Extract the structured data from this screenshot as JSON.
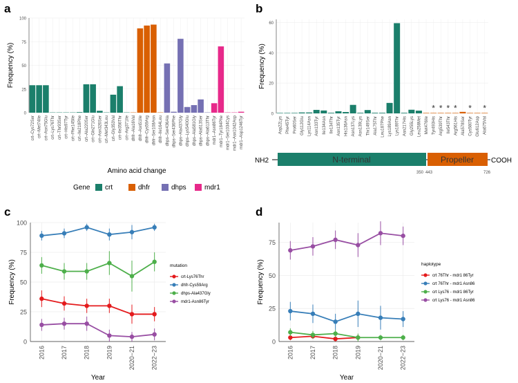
{
  "panels": {
    "a": "a",
    "b": "b",
    "c": "c",
    "d": "d"
  },
  "chart_data": [
    {
      "panel": "a",
      "type": "bar",
      "xlabel": "Amino acid change",
      "ylabel": "Frequency (%)",
      "ylim": [
        0,
        100
      ],
      "yticks": [
        0,
        25,
        50,
        75,
        100
      ],
      "grid": true,
      "legend_title": "Gene",
      "legend_position": "bottom",
      "gene_colors": {
        "crt": "#1b7f6b",
        "dhfr": "#d95f02",
        "dhps": "#7570b3",
        "mdr1": "#e7298a"
      },
      "categories": [
        "crt–Cys72Ser",
        "crt–Met74Ile",
        "crt–Asn75Glu",
        "crt–Lys76Thr",
        "crt–Thr93Ser",
        "crt–His97Tyr",
        "crt–Phe145Ile",
        "crt–Ile218Phe",
        "crt–Ala220Ser",
        "crt–Gln271Glu",
        "crt–Asn326Ser",
        "crt–Met343Leu",
        "crt–Gly353Val",
        "crt–Ile356Thr",
        "crt–Arg371Ile",
        "dhfr–Ala16Val",
        "dhfr–Asn51Ile",
        "dhfr–Cys59Arg",
        "dhfr–Ser108Asn",
        "dhfr–Ile164Leu",
        "dhps–Ser436Ala",
        "dhps–Ser436Phe",
        "dhps–Ala437Gly",
        "dhps–Lys540Glu",
        "dhps–Ala581Gly",
        "dhps–Ala613Ser",
        "dhps–Ala613Thr",
        "mdr1–Asn86Tyr",
        "mdr1–Tyr184Phe",
        "mdr1–Ser1034Cys",
        "mdr1–Asn1042Asp",
        "mdr1–Asp1246Tyr"
      ],
      "genes": [
        "crt",
        "crt",
        "crt",
        "crt",
        "crt",
        "crt",
        "crt",
        "crt",
        "crt",
        "crt",
        "crt",
        "crt",
        "crt",
        "crt",
        "crt",
        "dhfr",
        "dhfr",
        "dhfr",
        "dhfr",
        "dhfr",
        "dhps",
        "dhps",
        "dhps",
        "dhps",
        "dhps",
        "dhps",
        "dhps",
        "mdr1",
        "mdr1",
        "mdr1",
        "mdr1",
        "mdr1"
      ],
      "values": [
        29,
        29,
        29,
        0.3,
        0.3,
        0.3,
        0.3,
        0.6,
        30,
        30,
        2,
        0.3,
        19,
        28,
        0.3,
        0.3,
        89,
        92,
        93,
        0.3,
        52,
        1,
        78,
        6,
        8,
        14,
        0.3,
        10,
        70,
        0.3,
        0.3,
        1
      ]
    },
    {
      "panel": "b",
      "type": "bar",
      "ylabel": "Frequency (%)",
      "ylim": [
        0,
        62
      ],
      "yticks": [
        0,
        20,
        40,
        60
      ],
      "grid": true,
      "categories": [
        "Asp22Lys",
        "Phe45Tyr",
        "Pro60Ser",
        "Gly112Glu",
        "Lys114Asn",
        "Asn133Tyr",
        "Ile134Asn",
        "Ile134Thr",
        "Asn135Tyr",
        "His136Asn",
        "Asn137Lys",
        "Asn139Lys",
        "Thr149Ser",
        "Ala175Thr",
        "Leu187Phe",
        "Lys189Asn",
        "Lys189Thr",
        "Asn217His",
        "Gly255Lys",
        "Leu258Met",
        "Met476Ile",
        "Tyr493His",
        "Arg539Thr",
        "Ile543Thr",
        "Arg561His",
        "Ala578Ser",
        "Cys580Tyr",
        "Glu612Asp",
        "Ala675Val"
      ],
      "values": [
        0.3,
        0.3,
        0.3,
        0.6,
        0.6,
        2.3,
        1.9,
        0.4,
        1.4,
        0.9,
        5.6,
        0.4,
        2.2,
        0.4,
        0.4,
        6.9,
        59.5,
        0.4,
        2.4,
        1.8,
        0.3,
        0.3,
        0.3,
        0.3,
        0.3,
        1.0,
        0.3,
        0.3,
        0.3
      ],
      "colors": {
        "N-terminal": "#1b7f6b",
        "Propeller": "#d95f02"
      },
      "propeller_from_index": 20,
      "starred": [
        "Tyr493His",
        "Arg539Thr",
        "Ile543Thr",
        "Arg561His",
        "Cys580Tyr",
        "Ala675Val"
      ],
      "protein": {
        "nh2": "NH2",
        "cooh": "COOH",
        "domains": [
          {
            "name": "N-terminal",
            "start_label": "",
            "end_label": "350"
          },
          {
            "name": "Propeller",
            "start_label": "443",
            "end_label": "726"
          }
        ]
      }
    },
    {
      "panel": "c",
      "type": "line",
      "xlabel": "Year",
      "ylabel": "Frequency (%)",
      "categories": [
        "2016",
        "2017",
        "2018",
        "2019",
        "2020−21",
        "2022−23"
      ],
      "ylim": [
        0,
        100
      ],
      "yticks": [
        0,
        25,
        50,
        75,
        100
      ],
      "grid": true,
      "legend_title": "mutation",
      "legend_position": "right",
      "series": [
        {
          "name": "crt-Lys76Thr",
          "color": "#e41a1c",
          "values": [
            36,
            32,
            30,
            30,
            23,
            23
          ],
          "err": [
            7,
            6,
            6,
            6,
            8,
            6
          ]
        },
        {
          "name": "dhfr-Cys59Arg",
          "color": "#377eb8",
          "values": [
            89,
            91,
            96,
            90,
            92,
            96
          ],
          "err": [
            4,
            4,
            3,
            5,
            6,
            3
          ]
        },
        {
          "name": "dhps-Ala437Gly",
          "color": "#4daf4a",
          "values": [
            64,
            59,
            59,
            66,
            55,
            67
          ],
          "err": [
            7,
            7,
            7,
            10,
            13,
            8
          ]
        },
        {
          "name": "mdr1-Asn86Tyr",
          "color": "#984ea3",
          "values": [
            14,
            15,
            15,
            5,
            4,
            6
          ],
          "err": [
            5,
            5,
            6,
            5,
            4,
            5
          ]
        }
      ]
    },
    {
      "panel": "d",
      "type": "line",
      "xlabel": "Year",
      "ylabel": "Frequency (%)",
      "categories": [
        "2016",
        "2017",
        "2018",
        "2019",
        "2020−21",
        "2022−23"
      ],
      "ylim": [
        0,
        90
      ],
      "yticks": [
        0,
        25,
        50,
        75
      ],
      "grid": true,
      "legend_title": "haplotype",
      "legend_position": "right",
      "series": [
        {
          "name": "crt 76Thr - mdr1 86Tyr",
          "color": "#e41a1c",
          "values": [
            3,
            4,
            2,
            3,
            null,
            null
          ],
          "err": [
            2,
            2,
            2,
            2,
            0,
            0
          ]
        },
        {
          "name": "crt 76Thr - mdr1 Asn86",
          "color": "#377eb8",
          "values": [
            23,
            21,
            15,
            21,
            18,
            17
          ],
          "err": [
            7,
            7,
            6,
            10,
            9,
            6
          ]
        },
        {
          "name": "crt Lys76 - mdr1 86Tyr",
          "color": "#4daf4a",
          "values": [
            7,
            5,
            6,
            3,
            3,
            3
          ],
          "err": [
            3,
            3,
            3,
            3,
            2,
            2
          ]
        },
        {
          "name": "crt Lys76 - mdr1 Asn86",
          "color": "#984ea3",
          "values": [
            69,
            72,
            77,
            73,
            82,
            80
          ],
          "err": [
            7,
            7,
            7,
            9,
            9,
            7
          ]
        }
      ]
    }
  ]
}
